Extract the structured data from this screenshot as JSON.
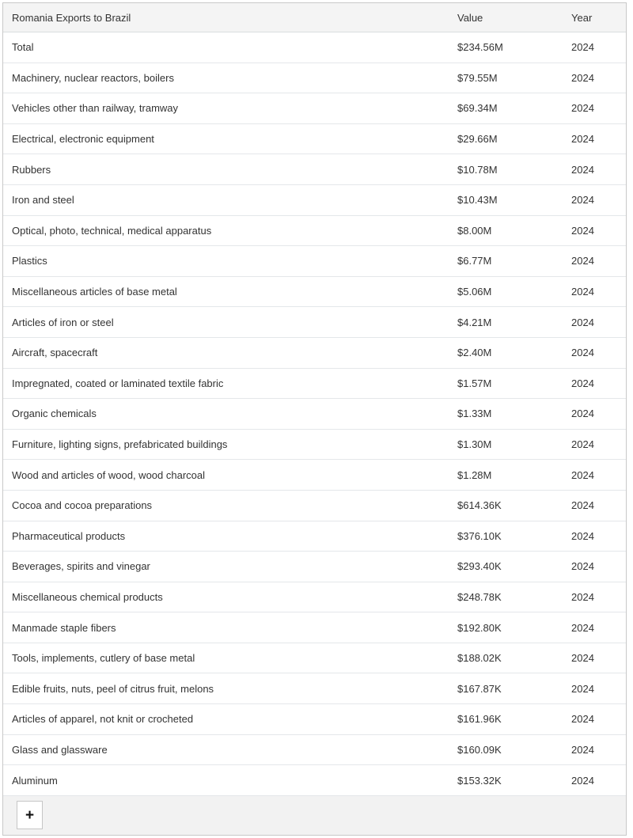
{
  "table": {
    "header": {
      "title": "Romania Exports to Brazil",
      "value_label": "Value",
      "year_label": "Year"
    },
    "rows": [
      {
        "label": "Total",
        "value": "$234.56M",
        "year": "2024"
      },
      {
        "label": "Machinery, nuclear reactors, boilers",
        "value": "$79.55M",
        "year": "2024"
      },
      {
        "label": "Vehicles other than railway, tramway",
        "value": "$69.34M",
        "year": "2024"
      },
      {
        "label": "Electrical, electronic equipment",
        "value": "$29.66M",
        "year": "2024"
      },
      {
        "label": "Rubbers",
        "value": "$10.78M",
        "year": "2024"
      },
      {
        "label": "Iron and steel",
        "value": "$10.43M",
        "year": "2024"
      },
      {
        "label": "Optical, photo, technical, medical apparatus",
        "value": "$8.00M",
        "year": "2024"
      },
      {
        "label": "Plastics",
        "value": "$6.77M",
        "year": "2024"
      },
      {
        "label": "Miscellaneous articles of base metal",
        "value": "$5.06M",
        "year": "2024"
      },
      {
        "label": "Articles of iron or steel",
        "value": "$4.21M",
        "year": "2024"
      },
      {
        "label": "Aircraft, spacecraft",
        "value": "$2.40M",
        "year": "2024"
      },
      {
        "label": "Impregnated, coated or laminated textile fabric",
        "value": "$1.57M",
        "year": "2024"
      },
      {
        "label": "Organic chemicals",
        "value": "$1.33M",
        "year": "2024"
      },
      {
        "label": "Furniture, lighting signs, prefabricated buildings",
        "value": "$1.30M",
        "year": "2024"
      },
      {
        "label": "Wood and articles of wood, wood charcoal",
        "value": "$1.28M",
        "year": "2024"
      },
      {
        "label": "Cocoa and cocoa preparations",
        "value": "$614.36K",
        "year": "2024"
      },
      {
        "label": "Pharmaceutical products",
        "value": "$376.10K",
        "year": "2024"
      },
      {
        "label": "Beverages, spirits and vinegar",
        "value": "$293.40K",
        "year": "2024"
      },
      {
        "label": "Miscellaneous chemical products",
        "value": "$248.78K",
        "year": "2024"
      },
      {
        "label": "Manmade staple fibers",
        "value": "$192.80K",
        "year": "2024"
      },
      {
        "label": "Tools, implements, cutlery of base metal",
        "value": "$188.02K",
        "year": "2024"
      },
      {
        "label": "Edible fruits, nuts, peel of citrus fruit, melons",
        "value": "$167.87K",
        "year": "2024"
      },
      {
        "label": "Articles of apparel, not knit or crocheted",
        "value": "$161.96K",
        "year": "2024"
      },
      {
        "label": "Glass and glassware",
        "value": "$160.09K",
        "year": "2024"
      },
      {
        "label": "Aluminum",
        "value": "$153.32K",
        "year": "2024"
      }
    ],
    "footer": {
      "add_button_label": "+"
    }
  },
  "colors": {
    "header_bg": "#f4f4f4",
    "footer_bg": "#f2f2f2",
    "outer_border": "#c9c9c9",
    "row_divider": "#e4e7ea",
    "text": "#333333",
    "button_bg": "#ffffff",
    "button_border": "#c6c6c6"
  }
}
